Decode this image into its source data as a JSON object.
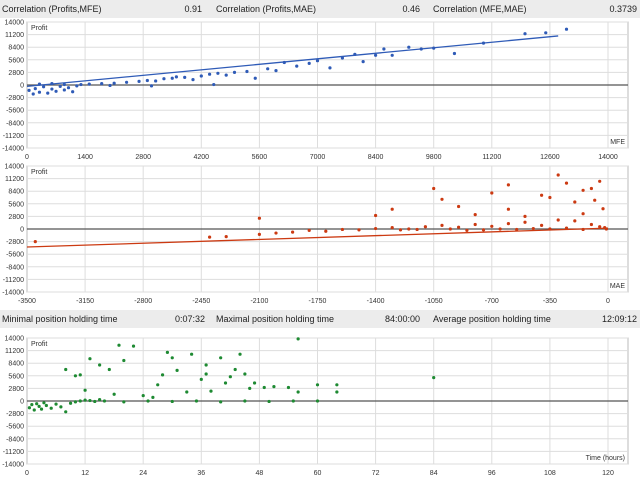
{
  "stats_top": [
    {
      "label": "Correlation (Profits,MFE)",
      "value": "0.91"
    },
    {
      "label": "Correlation (Profits,MAE)",
      "value": "0.46"
    },
    {
      "label": "Correlation (MFE,MAE)",
      "value": "0.3739"
    }
  ],
  "stats_mid": [
    {
      "label": "Minimal position holding time",
      "value": "0:07:32"
    },
    {
      "label": "Maximal position holding time",
      "value": "84:00:00"
    },
    {
      "label": "Average position holding time",
      "value": "12:09:12"
    }
  ],
  "chart_data": [
    {
      "type": "scatter",
      "ylabel": "Profit",
      "xlabel": "MFE",
      "color": "#2f5bb7",
      "xlim": [
        0,
        14000
      ],
      "xticks": [
        "0",
        "1400",
        "2800",
        "4200",
        "5600",
        "7000",
        "8400",
        "9800",
        "11200",
        "12600",
        "14000"
      ],
      "ylim": [
        -14000,
        14000
      ],
      "yticks": [
        "14000",
        "11200",
        "8400",
        "5600",
        "2800",
        "0",
        "-2800",
        "-5600",
        "-8400",
        "-11200",
        "-14000"
      ],
      "trend": [
        [
          0,
          -300
        ],
        [
          12800,
          10900
        ]
      ],
      "points": [
        [
          50,
          -1200
        ],
        [
          150,
          -2000
        ],
        [
          200,
          -800
        ],
        [
          300,
          -1600
        ],
        [
          400,
          -400
        ],
        [
          500,
          -1800
        ],
        [
          600,
          -900
        ],
        [
          700,
          -1400
        ],
        [
          800,
          -300
        ],
        [
          900,
          -1100
        ],
        [
          1000,
          -600
        ],
        [
          1100,
          -1500
        ],
        [
          1200,
          -200
        ],
        [
          300,
          200
        ],
        [
          600,
          300
        ],
        [
          900,
          100
        ],
        [
          1300,
          100
        ],
        [
          1500,
          200
        ],
        [
          1800,
          300
        ],
        [
          2100,
          400
        ],
        [
          2400,
          600
        ],
        [
          2700,
          800
        ],
        [
          2900,
          1000
        ],
        [
          3100,
          900
        ],
        [
          3300,
          1400
        ],
        [
          3500,
          1500
        ],
        [
          3600,
          1800
        ],
        [
          3800,
          1700
        ],
        [
          4000,
          1200
        ],
        [
          4200,
          2000
        ],
        [
          4400,
          2400
        ],
        [
          4600,
          2600
        ],
        [
          4800,
          2200
        ],
        [
          5000,
          2800
        ],
        [
          5300,
          3000
        ],
        [
          5500,
          1500
        ],
        [
          5800,
          3600
        ],
        [
          6000,
          3200
        ],
        [
          6200,
          5000
        ],
        [
          6500,
          4200
        ],
        [
          6800,
          4800
        ],
        [
          7000,
          5400
        ],
        [
          7300,
          3800
        ],
        [
          7600,
          6000
        ],
        [
          7900,
          6800
        ],
        [
          8100,
          5200
        ],
        [
          8400,
          6600
        ],
        [
          8600,
          8000
        ],
        [
          8800,
          6600
        ],
        [
          9200,
          8400
        ],
        [
          9500,
          8000
        ],
        [
          9800,
          8200
        ],
        [
          10300,
          7000
        ],
        [
          11000,
          9300
        ],
        [
          12000,
          11400
        ],
        [
          12500,
          11600
        ],
        [
          13000,
          12400
        ],
        [
          2000,
          -100
        ],
        [
          3000,
          -200
        ],
        [
          4500,
          100
        ]
      ]
    },
    {
      "type": "scatter",
      "ylabel": "Profit",
      "xlabel": "MAE",
      "color": "#cc3a12",
      "xlim": [
        -3500,
        0
      ],
      "xticks": [
        "-3500",
        "-3150",
        "-2800",
        "-2450",
        "-2100",
        "-1750",
        "-1400",
        "-1050",
        "-700",
        "-350",
        "0"
      ],
      "ylim": [
        -14000,
        14000
      ],
      "yticks": [
        "14000",
        "11200",
        "8400",
        "5600",
        "2800",
        "0",
        "-2800",
        "-5600",
        "-8400",
        "-11200",
        "-14000"
      ],
      "trend": [
        [
          -3500,
          -4000
        ],
        [
          0,
          200
        ]
      ],
      "points": [
        [
          -3450,
          -2800
        ],
        [
          -2400,
          -1800
        ],
        [
          -2300,
          -1700
        ],
        [
          -2100,
          -1200
        ],
        [
          -2000,
          -900
        ],
        [
          -1900,
          -700
        ],
        [
          -1800,
          -300
        ],
        [
          -1700,
          -500
        ],
        [
          -1600,
          -100
        ],
        [
          -1500,
          -200
        ],
        [
          -1400,
          100
        ],
        [
          -1300,
          300
        ],
        [
          -1200,
          0
        ],
        [
          -1100,
          500
        ],
        [
          -1000,
          800
        ],
        [
          -900,
          400
        ],
        [
          -800,
          1000
        ],
        [
          -700,
          600
        ],
        [
          -600,
          1200
        ],
        [
          -500,
          1500
        ],
        [
          -400,
          800
        ],
        [
          -300,
          2000
        ],
        [
          -200,
          1800
        ],
        [
          -100,
          1000
        ],
        [
          -50,
          500
        ],
        [
          -1050,
          9000
        ],
        [
          -1000,
          6600
        ],
        [
          -900,
          5000
        ],
        [
          -800,
          3200
        ],
        [
          -700,
          8000
        ],
        [
          -600,
          4400
        ],
        [
          -500,
          2800
        ],
        [
          -400,
          7500
        ],
        [
          -300,
          12000
        ],
        [
          -250,
          10200
        ],
        [
          -200,
          6000
        ],
        [
          -150,
          3400
        ],
        [
          -100,
          9000
        ],
        [
          -50,
          10600
        ],
        [
          -30,
          4500
        ],
        [
          -1300,
          4400
        ],
        [
          -2100,
          2400
        ],
        [
          -1400,
          3000
        ],
        [
          -1250,
          -200
        ],
        [
          -1150,
          -100
        ],
        [
          -950,
          0
        ],
        [
          -850,
          -300
        ],
        [
          -750,
          -200
        ],
        [
          -650,
          0
        ],
        [
          -550,
          -100
        ],
        [
          -450,
          100
        ],
        [
          -350,
          0
        ],
        [
          -250,
          200
        ],
        [
          -150,
          -100
        ],
        [
          -10,
          0
        ],
        [
          -20,
          300
        ],
        [
          -600,
          9800
        ],
        [
          -350,
          7000
        ],
        [
          -150,
          8600
        ],
        [
          -80,
          6400
        ]
      ]
    },
    {
      "type": "scatter",
      "ylabel": "Profit",
      "xlabel": "Time (hours)",
      "color": "#1e8a32",
      "xlim": [
        0,
        120
      ],
      "xticks": [
        "0",
        "12",
        "24",
        "36",
        "48",
        "60",
        "72",
        "84",
        "96",
        "108",
        "120"
      ],
      "ylim": [
        -14000,
        14000
      ],
      "yticks": [
        "14000",
        "11200",
        "8400",
        "5600",
        "2800",
        "0",
        "-2800",
        "-5600",
        "-8400",
        "-11200",
        "-14000"
      ],
      "trend": null,
      "points": [
        [
          0.5,
          -1500
        ],
        [
          1,
          -800
        ],
        [
          1.5,
          -2000
        ],
        [
          2,
          -600
        ],
        [
          2.5,
          -1200
        ],
        [
          3,
          -1800
        ],
        [
          3.5,
          -400
        ],
        [
          4,
          -1000
        ],
        [
          5,
          -1600
        ],
        [
          6,
          -700
        ],
        [
          7,
          -1300
        ],
        [
          8,
          -2400
        ],
        [
          9,
          -500
        ],
        [
          10,
          -200
        ],
        [
          11,
          0
        ],
        [
          12,
          200
        ],
        [
          13,
          100
        ],
        [
          14,
          -100
        ],
        [
          15,
          300
        ],
        [
          16,
          0
        ],
        [
          8,
          7000
        ],
        [
          10,
          5600
        ],
        [
          11,
          5800
        ],
        [
          12,
          2400
        ],
        [
          13,
          9400
        ],
        [
          15,
          8000
        ],
        [
          17,
          7000
        ],
        [
          18,
          1500
        ],
        [
          19,
          12400
        ],
        [
          22,
          12200
        ],
        [
          20,
          9000
        ],
        [
          24,
          1200
        ],
        [
          26,
          800
        ],
        [
          27,
          3600
        ],
        [
          28,
          5800
        ],
        [
          29,
          10800
        ],
        [
          30,
          9600
        ],
        [
          31,
          6800
        ],
        [
          33,
          2000
        ],
        [
          34,
          10400
        ],
        [
          36,
          4800
        ],
        [
          37,
          8000
        ],
        [
          37,
          6000
        ],
        [
          38,
          2200
        ],
        [
          40,
          9600
        ],
        [
          41,
          4000
        ],
        [
          42,
          5400
        ],
        [
          43,
          7000
        ],
        [
          44,
          10400
        ],
        [
          45,
          6000
        ],
        [
          46,
          2800
        ],
        [
          47,
          4000
        ],
        [
          49,
          3000
        ],
        [
          51,
          3200
        ],
        [
          54,
          3000
        ],
        [
          56,
          13800
        ],
        [
          56,
          2000
        ],
        [
          60,
          3600
        ],
        [
          64,
          3600
        ],
        [
          64,
          2000
        ],
        [
          84,
          5200
        ],
        [
          20,
          -200
        ],
        [
          25,
          0
        ],
        [
          30,
          -100
        ],
        [
          35,
          0
        ],
        [
          40,
          -200
        ],
        [
          45,
          0
        ],
        [
          50,
          -100
        ],
        [
          55,
          0
        ],
        [
          60,
          0
        ]
      ]
    }
  ]
}
